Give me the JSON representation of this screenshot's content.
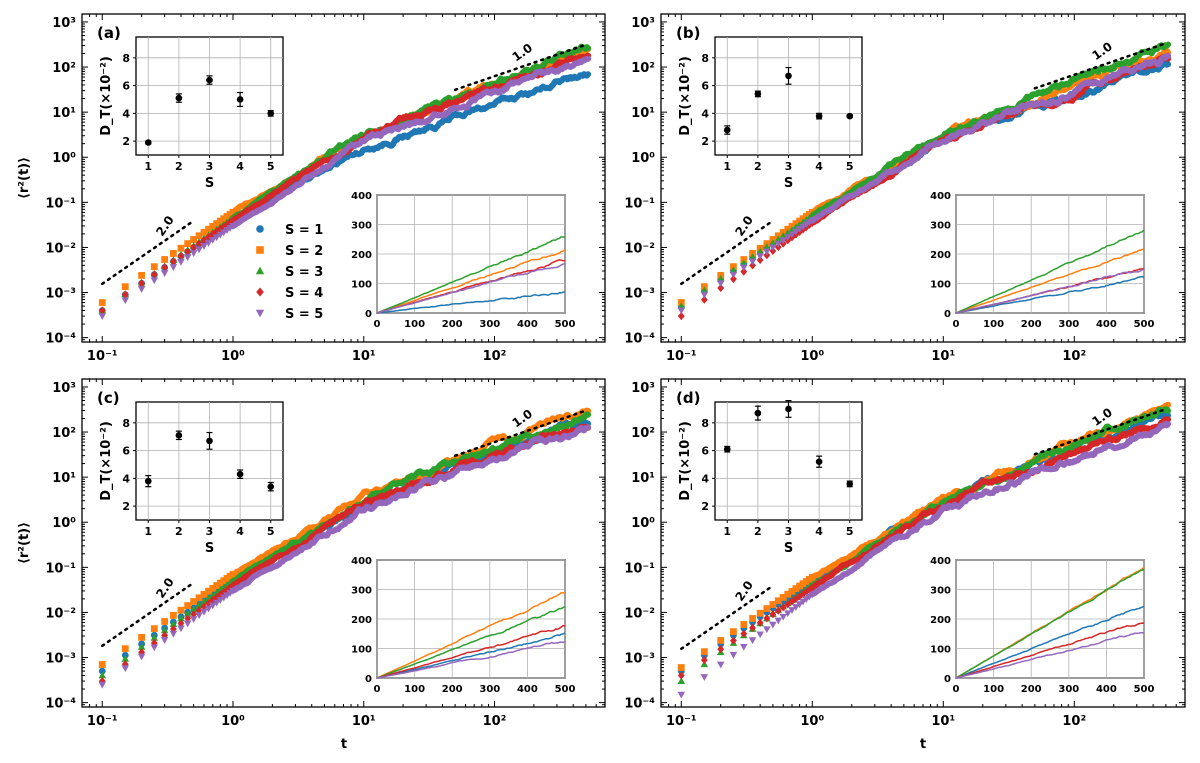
{
  "figure": {
    "ylabel": "⟨r²(t)⟩",
    "xlabel": "t",
    "main_x_ticks": [
      "10⁻¹",
      "10⁰",
      "10¹",
      "10²"
    ],
    "main_y_ticks": [
      "10⁻⁴",
      "10⁻³",
      "10⁻²",
      "10⁻¹",
      "10⁰",
      "10¹",
      "10²",
      "10³"
    ],
    "guide_labels": [
      "2.0",
      "1.0"
    ],
    "legend": [
      "S = 1",
      "S = 2",
      "S = 3",
      "S = 4",
      "S = 5"
    ],
    "colors": [
      "#1f77b4",
      "#ff7f0e",
      "#2ca02c",
      "#d62728",
      "#9467bd"
    ],
    "inset_diffusion": {
      "xlabel": "S",
      "ylabel": "D_T(×10⁻²)",
      "x_ticks": [
        "1",
        "2",
        "3",
        "4",
        "5"
      ],
      "y_ticks": [
        "2",
        "4",
        "6",
        "8"
      ]
    },
    "inset_linear": {
      "x_ticks": [
        "0",
        "100",
        "200",
        "300",
        "400",
        "500"
      ],
      "y_ticks": [
        "0",
        "100",
        "200",
        "300",
        "400"
      ]
    }
  },
  "chart_data": [
    {
      "panel": "(a)",
      "type": "scatter",
      "title": "(a)",
      "xscale": "log",
      "yscale": "log",
      "xlim": [
        0.07,
        700
      ],
      "ylim": [
        8e-05,
        1500
      ],
      "guides": [
        {
          "label": "2.0",
          "slope": 2.0
        },
        {
          "label": "1.0",
          "slope": 1.0
        }
      ],
      "series": [
        {
          "name": "S = 1",
          "x": [
            0.1,
            1,
            10,
            100,
            500
          ],
          "y": [
            0.0004,
            0.04,
            1.5,
            15,
            70
          ]
        },
        {
          "name": "S = 2",
          "x": [
            0.1,
            1,
            10,
            100,
            500
          ],
          "y": [
            0.0006,
            0.06,
            3,
            40,
            220
          ]
        },
        {
          "name": "S = 3",
          "x": [
            0.1,
            1,
            10,
            100,
            500
          ],
          "y": [
            0.0004,
            0.045,
            3.5,
            45,
            250
          ]
        },
        {
          "name": "S = 4",
          "x": [
            0.1,
            1,
            10,
            100,
            500
          ],
          "y": [
            0.0004,
            0.04,
            3,
            40,
            180
          ]
        },
        {
          "name": "S = 5",
          "x": [
            0.1,
            1,
            10,
            100,
            500
          ],
          "y": [
            0.0003,
            0.03,
            2,
            30,
            175
          ]
        }
      ],
      "diffusion_inset": {
        "S": [
          1,
          2,
          3,
          4,
          5
        ],
        "D_T": [
          1.9,
          5.1,
          6.4,
          5.0,
          4.0
        ],
        "err": [
          0.1,
          0.3,
          0.3,
          0.5,
          0.2
        ],
        "ylim": [
          1,
          9.5
        ]
      },
      "linear_inset": {
        "xlim": [
          0,
          500
        ],
        "ylim": [
          0,
          400
        ],
        "end_values": [
          72,
          215,
          258,
          180,
          172
        ]
      }
    },
    {
      "panel": "(b)",
      "type": "scatter",
      "title": "(b)",
      "xscale": "log",
      "yscale": "log",
      "xlim": [
        0.07,
        700
      ],
      "ylim": [
        8e-05,
        1500
      ],
      "guides": [
        {
          "label": "2.0",
          "slope": 2.0
        },
        {
          "label": "1.0",
          "slope": 1.0
        }
      ],
      "series": [
        {
          "name": "S = 1",
          "x": [
            0.1,
            1,
            10,
            100,
            500
          ],
          "y": [
            0.0005,
            0.05,
            2.5,
            25,
            120
          ]
        },
        {
          "name": "S = 2",
          "x": [
            0.1,
            1,
            10,
            100,
            500
          ],
          "y": [
            0.0006,
            0.06,
            3,
            40,
            210
          ]
        },
        {
          "name": "S = 3",
          "x": [
            0.1,
            1,
            10,
            100,
            500
          ],
          "y": [
            0.0005,
            0.05,
            3.5,
            50,
            280
          ]
        },
        {
          "name": "S = 4",
          "x": [
            0.1,
            1,
            10,
            100,
            500
          ],
          "y": [
            0.0003,
            0.035,
            2.5,
            30,
            150
          ]
        },
        {
          "name": "S = 5",
          "x": [
            0.1,
            1,
            10,
            100,
            500
          ],
          "y": [
            0.0004,
            0.04,
            2.5,
            30,
            150
          ]
        }
      ],
      "diffusion_inset": {
        "S": [
          1,
          2,
          3,
          4,
          5
        ],
        "D_T": [
          2.8,
          5.4,
          6.7,
          3.8,
          3.8
        ],
        "err": [
          0.3,
          0.2,
          0.6,
          0.2,
          0.1
        ],
        "ylim": [
          1,
          9.5
        ]
      },
      "linear_inset": {
        "xlim": [
          0,
          500
        ],
        "ylim": [
          0,
          400
        ],
        "end_values": [
          118,
          215,
          280,
          150,
          148
        ]
      }
    },
    {
      "panel": "(c)",
      "type": "scatter",
      "title": "(c)",
      "xscale": "log",
      "yscale": "log",
      "xlim": [
        0.07,
        700
      ],
      "ylim": [
        8e-05,
        1500
      ],
      "guides": [
        {
          "label": "2.0",
          "slope": 2.0
        },
        {
          "label": "1.0",
          "slope": 1.0
        }
      ],
      "series": [
        {
          "name": "S = 1",
          "x": [
            0.1,
            1,
            10,
            100,
            500
          ],
          "y": [
            0.0005,
            0.05,
            2.5,
            35,
            150
          ]
        },
        {
          "name": "S = 2",
          "x": [
            0.1,
            1,
            10,
            100,
            500
          ],
          "y": [
            0.0007,
            0.07,
            3.5,
            55,
            290
          ]
        },
        {
          "name": "S = 3",
          "x": [
            0.1,
            1,
            10,
            100,
            500
          ],
          "y": [
            0.0004,
            0.05,
            3,
            45,
            240
          ]
        },
        {
          "name": "S = 4",
          "x": [
            0.1,
            1,
            10,
            100,
            500
          ],
          "y": [
            0.0003,
            0.04,
            2.5,
            35,
            175
          ]
        },
        {
          "name": "S = 5",
          "x": [
            0.1,
            1,
            10,
            100,
            500
          ],
          "y": [
            0.00025,
            0.03,
            2,
            30,
            120
          ]
        }
      ],
      "diffusion_inset": {
        "S": [
          1,
          2,
          3,
          4,
          5
        ],
        "D_T": [
          3.8,
          7.1,
          6.7,
          4.3,
          3.4
        ],
        "err": [
          0.4,
          0.3,
          0.6,
          0.3,
          0.3
        ],
        "ylim": [
          1,
          9.5
        ]
      },
      "linear_inset": {
        "xlim": [
          0,
          500
        ],
        "ylim": [
          0,
          400
        ],
        "end_values": [
          148,
          290,
          238,
          175,
          122
        ]
      }
    },
    {
      "panel": "(d)",
      "type": "scatter",
      "title": "(d)",
      "xscale": "log",
      "yscale": "log",
      "xlim": [
        0.07,
        700
      ],
      "ylim": [
        8e-05,
        1500
      ],
      "guides": [
        {
          "label": "2.0",
          "slope": 2.0
        },
        {
          "label": "1.0",
          "slope": 1.0
        }
      ],
      "series": [
        {
          "name": "S = 1",
          "x": [
            0.1,
            1,
            10,
            100,
            500
          ],
          "y": [
            0.0005,
            0.05,
            3,
            40,
            250
          ]
        },
        {
          "name": "S = 2",
          "x": [
            0.1,
            1,
            10,
            100,
            500
          ],
          "y": [
            0.0006,
            0.06,
            3.5,
            55,
            375
          ]
        },
        {
          "name": "S = 3",
          "x": [
            0.1,
            1,
            10,
            100,
            500
          ],
          "y": [
            0.0003,
            0.04,
            3,
            50,
            370
          ]
        },
        {
          "name": "S = 4",
          "x": [
            0.1,
            1,
            10,
            100,
            500
          ],
          "y": [
            0.0004,
            0.035,
            2.5,
            30,
            190
          ]
        },
        {
          "name": "S = 5",
          "x": [
            0.1,
            1,
            10,
            100,
            500
          ],
          "y": [
            0.00015,
            0.025,
            2,
            25,
            155
          ]
        }
      ],
      "diffusion_inset": {
        "S": [
          1,
          2,
          3,
          4,
          5
        ],
        "D_T": [
          6.1,
          8.7,
          9.0,
          5.2,
          3.6
        ],
        "err": [
          0.2,
          0.5,
          0.6,
          0.4,
          0.2
        ],
        "ylim": [
          1,
          9.5
        ]
      },
      "linear_inset": {
        "xlim": [
          0,
          500
        ],
        "ylim": [
          0,
          400
        ],
        "end_values": [
          248,
          375,
          370,
          190,
          155
        ]
      }
    }
  ]
}
